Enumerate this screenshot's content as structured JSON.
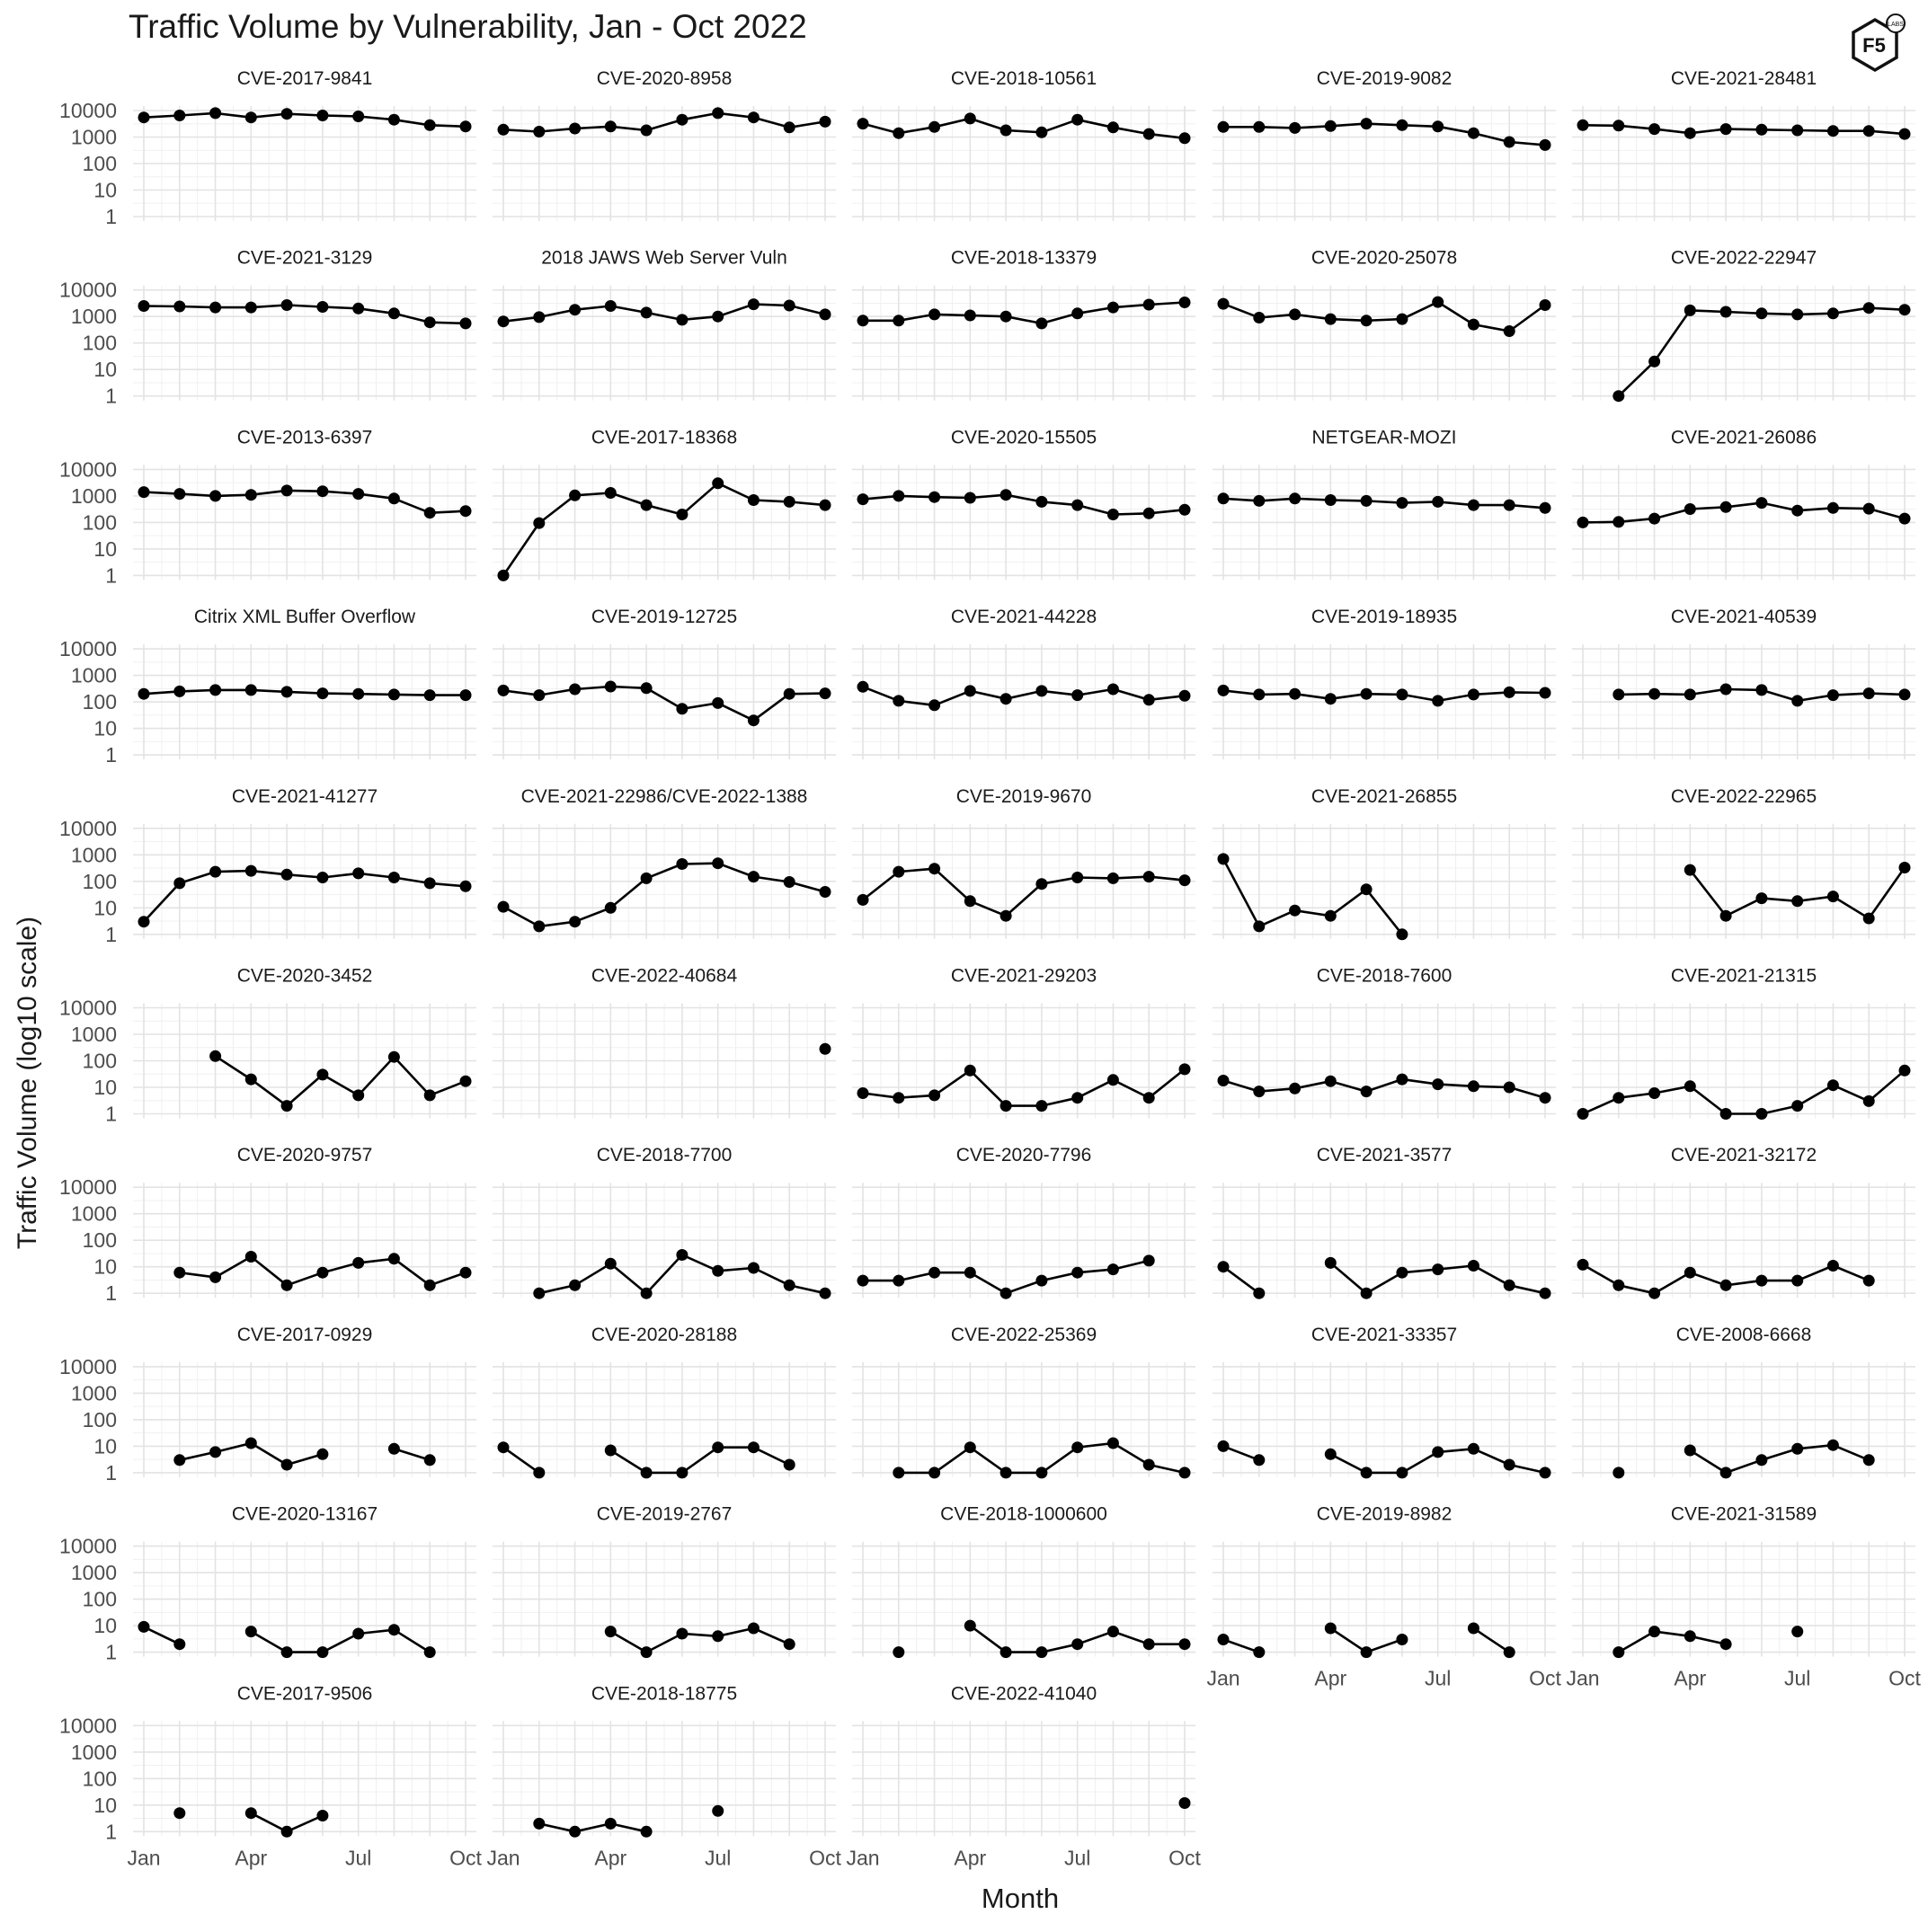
{
  "chart_data": {
    "type": "line",
    "title": "Traffic Volume by Vulnerability, Jan - Oct 2022",
    "xlabel": "Month",
    "ylabel": "Traffic Volume (log10 scale)",
    "logo_text": "F5",
    "logo_sub": "LABS",
    "y_scale": "log10",
    "ylim": [
      1,
      10000
    ],
    "y_ticks": [
      "1",
      "10",
      "100",
      "1000",
      "10000"
    ],
    "x_ticks": [
      "Jan",
      "Apr",
      "Jul",
      "Oct"
    ],
    "months": [
      "Jan",
      "Feb",
      "Mar",
      "Apr",
      "May",
      "Jun",
      "Jul",
      "Aug",
      "Sep",
      "Oct"
    ],
    "panels": [
      {
        "name": "CVE-2017-9841",
        "values": [
          5500,
          6500,
          8000,
          5500,
          7500,
          6500,
          6000,
          4500,
          2800,
          2500
        ]
      },
      {
        "name": "CVE-2020-8958",
        "values": [
          1900,
          1600,
          2100,
          2500,
          1800,
          4500,
          8000,
          5500,
          2300,
          3800
        ]
      },
      {
        "name": "CVE-2018-10561",
        "values": [
          3200,
          1400,
          2400,
          5000,
          1800,
          1500,
          4500,
          2300,
          1300,
          900
        ]
      },
      {
        "name": "CVE-2019-9082",
        "values": [
          2400,
          2400,
          2200,
          2600,
          3200,
          2800,
          2500,
          1400,
          650,
          500
        ]
      },
      {
        "name": "CVE-2021-28481",
        "values": [
          2800,
          2700,
          2000,
          1400,
          2000,
          1900,
          1800,
          1700,
          1700,
          1300
        ]
      },
      {
        "name": "CVE-2021-3129",
        "values": [
          2500,
          2400,
          2200,
          2200,
          2700,
          2300,
          2000,
          1300,
          600,
          550
        ]
      },
      {
        "name": "2018 JAWS Web Server Vuln",
        "values": [
          650,
          950,
          1800,
          2500,
          1400,
          750,
          1000,
          2900,
          2600,
          1200
        ]
      },
      {
        "name": "CVE-2018-13379",
        "values": [
          700,
          700,
          1200,
          1100,
          1000,
          550,
          1300,
          2200,
          2800,
          3400
        ]
      },
      {
        "name": "CVE-2020-25078",
        "values": [
          3000,
          900,
          1200,
          800,
          700,
          800,
          3500,
          500,
          280,
          2700
        ]
      },
      {
        "name": "CVE-2022-22947",
        "values": [
          null,
          1,
          20,
          1700,
          1500,
          1300,
          1200,
          1300,
          2100,
          1800
        ]
      },
      {
        "name": "CVE-2013-6397",
        "values": [
          1400,
          1200,
          1000,
          1100,
          1600,
          1500,
          1200,
          800,
          230,
          270
        ]
      },
      {
        "name": "CVE-2017-18368",
        "values": [
          1,
          95,
          1050,
          1300,
          450,
          200,
          3000,
          700,
          600,
          450
        ]
      },
      {
        "name": "CVE-2020-15505",
        "values": [
          750,
          1000,
          900,
          850,
          1100,
          600,
          450,
          200,
          220,
          300
        ]
      },
      {
        "name": "NETGEAR-MOZI",
        "values": [
          800,
          650,
          800,
          700,
          650,
          550,
          600,
          450,
          450,
          350
        ]
      },
      {
        "name": "CVE-2021-26086",
        "values": [
          100,
          105,
          140,
          320,
          380,
          550,
          280,
          350,
          330,
          140
        ]
      },
      {
        "name": "Citrix XML Buffer Overflow",
        "values": [
          200,
          250,
          280,
          280,
          240,
          210,
          200,
          190,
          180,
          180
        ]
      },
      {
        "name": "CVE-2019-12725",
        "values": [
          270,
          180,
          300,
          380,
          330,
          55,
          90,
          20,
          200,
          210
        ]
      },
      {
        "name": "CVE-2021-44228",
        "values": [
          370,
          110,
          75,
          260,
          130,
          260,
          180,
          300,
          120,
          170
        ]
      },
      {
        "name": "CVE-2019-18935",
        "values": [
          270,
          190,
          200,
          130,
          200,
          190,
          110,
          190,
          230,
          220
        ]
      },
      {
        "name": "CVE-2021-40539",
        "values": [
          null,
          190,
          200,
          190,
          300,
          280,
          110,
          180,
          210,
          190
        ]
      },
      {
        "name": "CVE-2021-41277",
        "values": [
          3,
          85,
          230,
          250,
          180,
          140,
          200,
          140,
          85,
          65
        ]
      },
      {
        "name": "CVE-2021-22986/CVE-2022-1388",
        "values": [
          11,
          2,
          3,
          10,
          130,
          450,
          480,
          150,
          95,
          40
        ]
      },
      {
        "name": "CVE-2019-9670",
        "values": [
          20,
          230,
          300,
          18,
          5,
          80,
          140,
          130,
          150,
          110
        ]
      },
      {
        "name": "CVE-2021-26855",
        "values": [
          700,
          2,
          8,
          5,
          50,
          1,
          null,
          null,
          null,
          null
        ]
      },
      {
        "name": "CVE-2022-22965",
        "values": [
          null,
          null,
          null,
          270,
          5,
          23,
          18,
          27,
          4,
          330
        ]
      },
      {
        "name": "CVE-2020-3452",
        "values": [
          null,
          null,
          150,
          20,
          2,
          30,
          5,
          140,
          5,
          17
        ]
      },
      {
        "name": "CVE-2022-40684",
        "values": [
          null,
          null,
          null,
          null,
          null,
          null,
          null,
          null,
          null,
          280
        ]
      },
      {
        "name": "CVE-2021-29203",
        "values": [
          6,
          4,
          5,
          43,
          2,
          2,
          4,
          19,
          4,
          48
        ]
      },
      {
        "name": "CVE-2018-7600",
        "values": [
          18,
          7,
          9,
          17,
          7,
          20,
          13,
          11,
          10,
          4
        ]
      },
      {
        "name": "CVE-2021-21315",
        "values": [
          1,
          4,
          6,
          11,
          1,
          1,
          2,
          12,
          3,
          43
        ]
      },
      {
        "name": "CVE-2020-9757",
        "values": [
          null,
          6,
          4,
          24,
          2,
          6,
          14,
          20,
          2,
          6
        ]
      },
      {
        "name": "CVE-2018-7700",
        "values": [
          null,
          1,
          2,
          13,
          1,
          28,
          7,
          9,
          2,
          1
        ]
      },
      {
        "name": "CVE-2020-7796",
        "values": [
          3,
          3,
          6,
          6,
          1,
          3,
          6,
          8,
          17,
          null
        ]
      },
      {
        "name": "CVE-2021-3577",
        "values": [
          10,
          1,
          null,
          14,
          1,
          6,
          8,
          11,
          2,
          1
        ]
      },
      {
        "name": "CVE-2021-32172",
        "values": [
          12,
          2,
          1,
          6,
          2,
          3,
          3,
          11,
          3,
          null
        ]
      },
      {
        "name": "CVE-2017-0929",
        "values": [
          null,
          3,
          6,
          13,
          2,
          5,
          null,
          8,
          3,
          null
        ]
      },
      {
        "name": "CVE-2020-28188",
        "values": [
          9,
          1,
          null,
          7,
          1,
          1,
          9,
          9,
          2,
          null
        ]
      },
      {
        "name": "CVE-2022-25369",
        "values": [
          null,
          1,
          1,
          9,
          1,
          1,
          9,
          13,
          2,
          1
        ]
      },
      {
        "name": "CVE-2021-33357",
        "values": [
          10,
          3,
          null,
          5,
          1,
          1,
          6,
          8,
          2,
          1
        ]
      },
      {
        "name": "CVE-2008-6668",
        "values": [
          null,
          1,
          null,
          7,
          1,
          3,
          8,
          11,
          3,
          null
        ]
      },
      {
        "name": "CVE-2020-13167",
        "values": [
          9,
          2,
          null,
          6,
          1,
          1,
          5,
          7,
          1,
          null
        ]
      },
      {
        "name": "CVE-2019-2767",
        "values": [
          null,
          null,
          null,
          6,
          1,
          5,
          4,
          8,
          2,
          null
        ]
      },
      {
        "name": "CVE-2018-1000600",
        "values": [
          null,
          1,
          null,
          10,
          1,
          1,
          2,
          6,
          2,
          2
        ]
      },
      {
        "name": "CVE-2019-8982",
        "values": [
          3,
          1,
          null,
          8,
          1,
          3,
          null,
          8,
          1,
          null
        ]
      },
      {
        "name": "CVE-2021-31589",
        "values": [
          null,
          1,
          6,
          4,
          2,
          null,
          6,
          null,
          null,
          null
        ]
      },
      {
        "name": "CVE-2017-9506",
        "values": [
          null,
          5,
          null,
          5,
          1,
          4,
          null,
          null,
          null,
          null
        ]
      },
      {
        "name": "CVE-2018-18775",
        "values": [
          null,
          2,
          1,
          2,
          1,
          null,
          6,
          null,
          null,
          null
        ]
      },
      {
        "name": "CVE-2022-41040",
        "values": [
          null,
          null,
          null,
          null,
          null,
          null,
          null,
          null,
          null,
          12
        ]
      }
    ]
  }
}
